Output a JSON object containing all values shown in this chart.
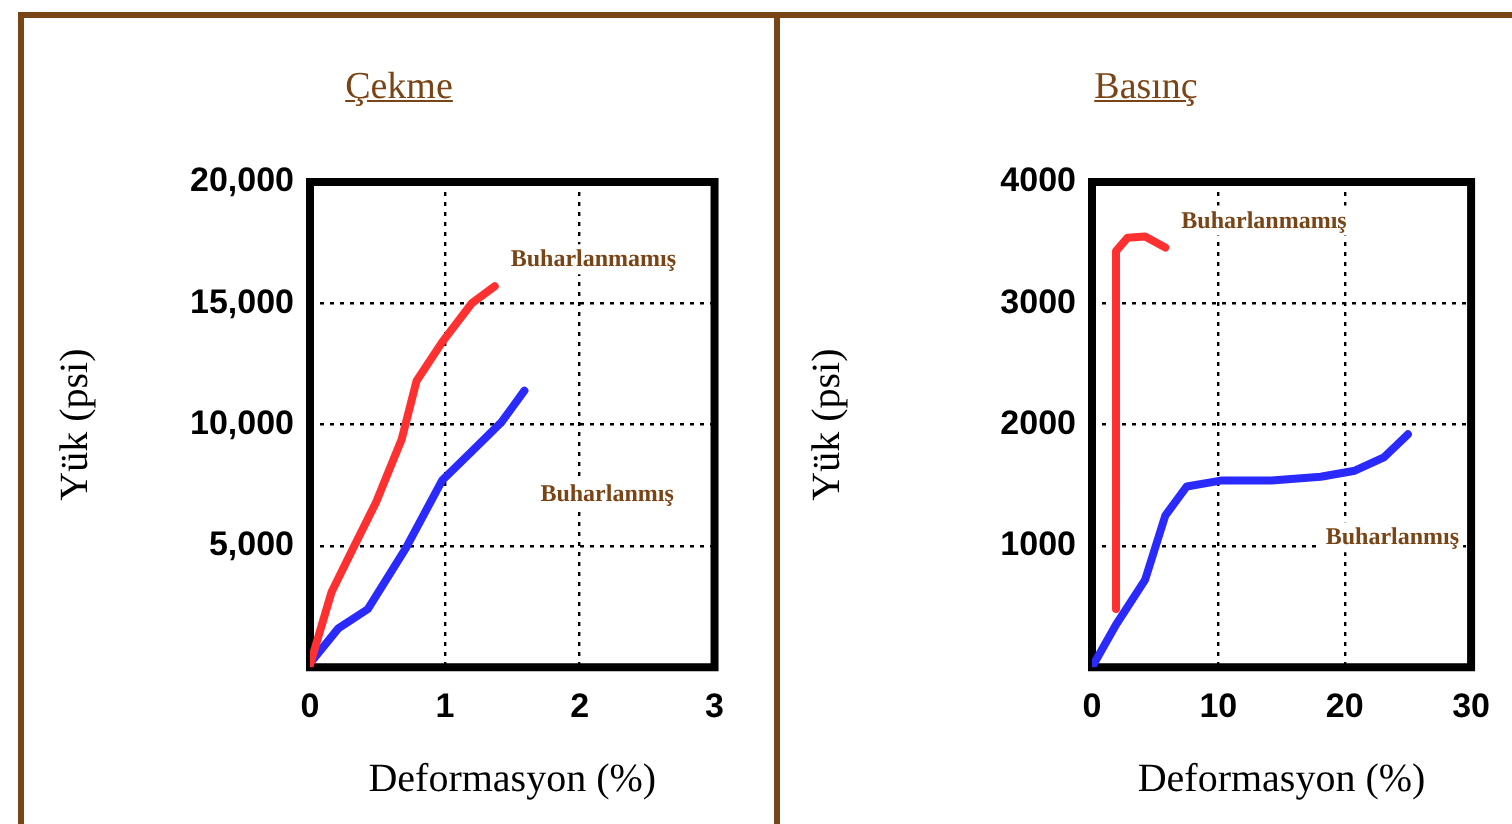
{
  "chart_data": [
    {
      "type": "line",
      "title": "Çekme",
      "xlabel": "Deformasyon (%)",
      "ylabel": "Yük (psi)",
      "xlim": [
        0,
        3
      ],
      "xticks": [
        0,
        1,
        2,
        3
      ],
      "ylim": [
        0,
        20000
      ],
      "yticks": [
        {
          "value": 5000,
          "label": "5,000"
        },
        {
          "value": 10000,
          "label": "10,000"
        },
        {
          "value": 15000,
          "label": "15,000"
        },
        {
          "value": 20000,
          "label": "20,000"
        }
      ],
      "grid": true,
      "marker": "none",
      "line_style": "solid",
      "series": [
        {
          "name": "Buharlanmamış",
          "color": "#ff3030",
          "x": [
            0,
            0.16,
            0.32,
            0.49,
            0.68,
            0.79,
            0.98,
            1.2,
            1.37
          ],
          "values": [
            100,
            3100,
            4900,
            6800,
            9400,
            11800,
            13400,
            15000,
            15700
          ]
        },
        {
          "name": "Buharlanmış",
          "color": "#2a2aff",
          "x": [
            0.02,
            0.21,
            0.43,
            0.71,
            0.98,
            1.2,
            1.42,
            1.59
          ],
          "values": [
            300,
            1600,
            2400,
            4900,
            7700,
            8900,
            10100,
            11400
          ]
        }
      ]
    },
    {
      "type": "line",
      "title": "Basınç",
      "xlabel": "Deformasyon (%)",
      "ylabel": "Yük (psi)",
      "xlim": [
        0,
        30
      ],
      "xticks": [
        0,
        10,
        20,
        30
      ],
      "ylim": [
        0,
        4000
      ],
      "yticks": [
        1000,
        2000,
        3000,
        4000
      ],
      "grid": true,
      "marker": "none",
      "line_style": "solid",
      "series": [
        {
          "name": "Buharlanmamış",
          "color": "#ff3030",
          "x": [
            1.9,
            1.9,
            1.9,
            1.9,
            2.8,
            4.2,
            5.8
          ],
          "values": [
            480,
            1570,
            2630,
            3430,
            3540,
            3550,
            3460
          ]
        },
        {
          "name": "Buharlanmış",
          "color": "#2a2aff",
          "x": [
            0,
            1.9,
            4.2,
            5.8,
            7.5,
            10.3,
            14.2,
            18.1,
            20.8,
            23.1,
            25
          ],
          "values": [
            0,
            350,
            720,
            1250,
            1490,
            1540,
            1540,
            1570,
            1620,
            1730,
            1920
          ]
        }
      ]
    }
  ]
}
